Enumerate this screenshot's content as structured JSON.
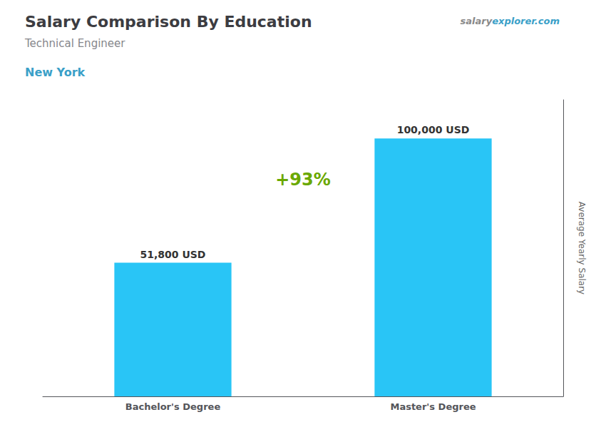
{
  "chart_data": {
    "type": "bar",
    "title": "Salary Comparison By Education",
    "subtitle": "Technical Engineer",
    "location": "New York",
    "watermark": [
      "salary",
      "explorer.com"
    ],
    "ylabel": "Average Yearly Salary",
    "categories": [
      "Bachelor's Degree",
      "Master's Degree"
    ],
    "values": [
      51800,
      100000
    ],
    "value_labels": [
      "51,800 USD",
      "100,000 USD"
    ],
    "data_labels": true,
    "annotation": "+93%",
    "color": "#29c5f6",
    "ylim": [
      0,
      115000
    ],
    "tick_labels": "x",
    "grid": false
  }
}
